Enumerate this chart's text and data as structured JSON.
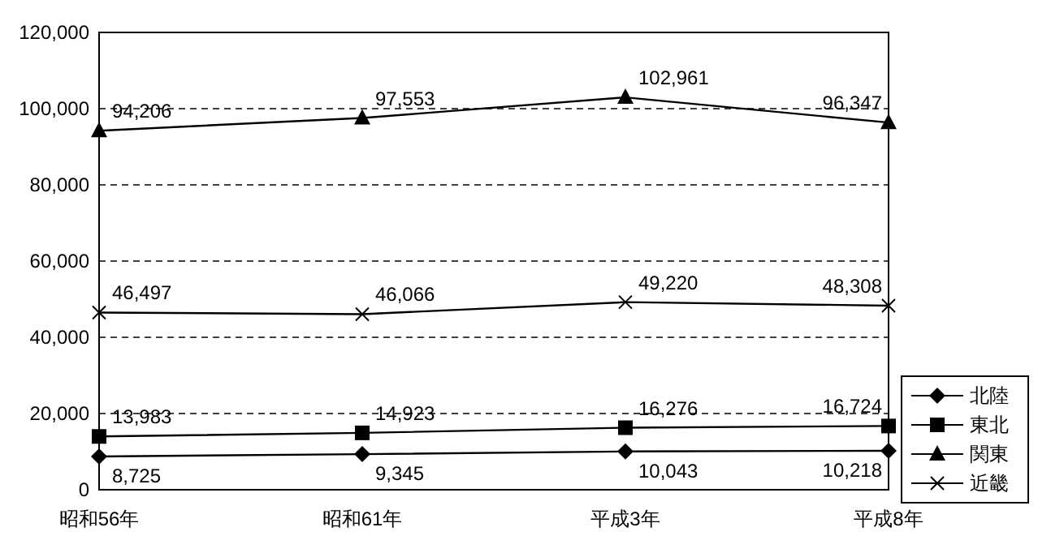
{
  "chart_data": {
    "type": "line",
    "categories": [
      "昭和56年",
      "昭和61年",
      "平成3年",
      "平成8年"
    ],
    "series": [
      {
        "name": "北陸",
        "color": "#000000",
        "marker": "diamond",
        "values": [
          8725,
          9345,
          10043,
          10218
        ],
        "value_labels": [
          "8,725",
          "9,345",
          "10,043",
          "10,218"
        ]
      },
      {
        "name": "東北",
        "color": "#000000",
        "marker": "square",
        "values": [
          13983,
          14923,
          16276,
          16724
        ],
        "value_labels": [
          "13,983",
          "14,923",
          "16,276",
          "16,724"
        ]
      },
      {
        "name": "関東",
        "color": "#000000",
        "marker": "triangle",
        "values": [
          94206,
          97553,
          102961,
          96347
        ],
        "value_labels": [
          "94,206",
          "97,553",
          "102,961",
          "96,347"
        ]
      },
      {
        "name": "近畿",
        "color": "#000000",
        "marker": "cross",
        "values": [
          46497,
          46066,
          49220,
          48308
        ],
        "value_labels": [
          "46,497",
          "46,066",
          "49,220",
          "48,308"
        ]
      }
    ],
    "ylim": [
      0,
      120000
    ],
    "yticks": [
      {
        "value": 0,
        "label": "0"
      },
      {
        "value": 20000,
        "label": "20,000"
      },
      {
        "value": 40000,
        "label": "40,000"
      },
      {
        "value": 60000,
        "label": "60,000"
      },
      {
        "value": 80000,
        "label": "80,000"
      },
      {
        "value": 100000,
        "label": "100,000"
      },
      {
        "value": 120000,
        "label": "120,000"
      }
    ],
    "grid": "y",
    "legend": "bottom right",
    "line_style": "solid"
  }
}
